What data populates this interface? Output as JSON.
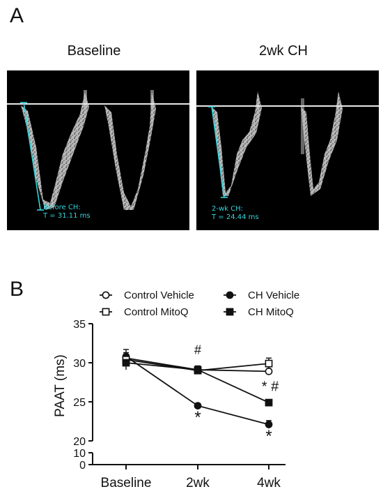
{
  "panel_a": {
    "letter": "A",
    "left_title": "Baseline",
    "right_title": "2wk CH",
    "left_measurement": [
      "Before CH:",
      "T = 31.11 ms"
    ],
    "right_measurement": [
      "2-wk CH:",
      "T = 24.44 ms"
    ],
    "measure_color": "#34d4dc"
  },
  "panel_b": {
    "letter": "B"
  },
  "chart_data": {
    "type": "line",
    "categories": [
      "Baseline",
      "2wk",
      "4wk"
    ],
    "ylabel": "PAAT (ms)",
    "xlabel": "",
    "ylim_upper": [
      20,
      35
    ],
    "ylim_lower": [
      0,
      10
    ],
    "yticks_upper": [
      20,
      25,
      30,
      35
    ],
    "yticks_lower": [
      0,
      10
    ],
    "axis_break": true,
    "legend_placement": "top",
    "series": [
      {
        "name": "Control Vehicle",
        "marker": "open-circle",
        "values": [
          30.6,
          29.1,
          28.9
        ],
        "errors": [
          0.5,
          0.3,
          0.3
        ]
      },
      {
        "name": "CH Vehicle",
        "marker": "filled-circle",
        "values": [
          30.8,
          24.5,
          22.1
        ],
        "errors": [
          0.5,
          0.2,
          0.5
        ]
      },
      {
        "name": "Control MitoQ",
        "marker": "open-square",
        "values": [
          30.4,
          29.0,
          29.9
        ],
        "errors": [
          1.3,
          0.4,
          0.7
        ]
      },
      {
        "name": "CH MitoQ",
        "marker": "filled-square",
        "values": [
          30.0,
          29.1,
          24.9
        ],
        "errors": [
          0.3,
          0.5,
          0.3
        ]
      }
    ],
    "annotations": [
      {
        "category": "2wk",
        "text": "#",
        "position": "above"
      },
      {
        "category": "2wk",
        "text": "*",
        "position": "below"
      },
      {
        "category": "4wk",
        "text": "* #",
        "position": "above CH MitoQ"
      },
      {
        "category": "4wk",
        "text": "*",
        "position": "below"
      }
    ]
  }
}
